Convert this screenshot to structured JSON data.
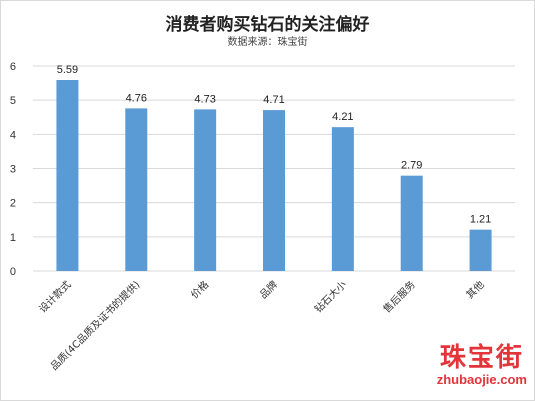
{
  "chart_data": {
    "type": "bar",
    "title": "消费者购买钻石的关注偏好",
    "subtitle": "数据来源：珠宝街",
    "categories": [
      "设计款式",
      "品质(4C品质及证书的提供)",
      "价格",
      "品牌",
      "钻石大小",
      "售后服务",
      "其他"
    ],
    "values": [
      5.59,
      4.76,
      4.73,
      4.71,
      4.21,
      2.79,
      1.21
    ],
    "data_labels": [
      "5.59",
      "4.76",
      "4.73",
      "4.71",
      "4.21",
      "2.79",
      "1.21"
    ],
    "y_ticks": [
      "0",
      "1",
      "2",
      "3",
      "4",
      "5",
      "6"
    ],
    "ylim": [
      0,
      6
    ],
    "grid": true,
    "bar_color": "#5b9bd5",
    "grid_color": "#d9d9d9"
  },
  "watermark": {
    "name": "珠宝街",
    "url": "zhubaojie.com",
    "color": "#e3343a"
  }
}
